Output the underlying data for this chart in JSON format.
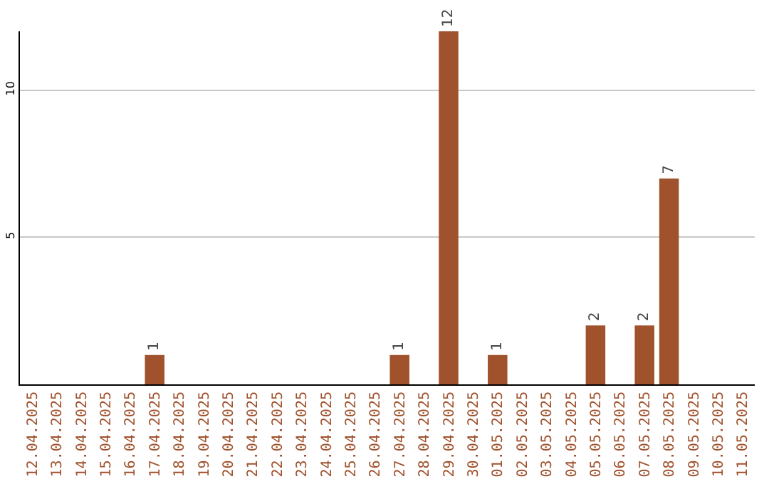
{
  "chart_data": {
    "type": "bar",
    "categories": [
      "12.04.2025",
      "13.04.2025",
      "14.04.2025",
      "15.04.2025",
      "16.04.2025",
      "17.04.2025",
      "18.04.2025",
      "19.04.2025",
      "20.04.2025",
      "21.04.2025",
      "22.04.2025",
      "23.04.2025",
      "24.04.2025",
      "25.04.2025",
      "26.04.2025",
      "27.04.2025",
      "28.04.2025",
      "29.04.2025",
      "30.04.2025",
      "01.05.2025",
      "02.05.2025",
      "03.05.2025",
      "04.05.2025",
      "05.05.2025",
      "06.05.2025",
      "07.05.2025",
      "08.05.2025",
      "09.05.2025",
      "10.05.2025",
      "11.05.2025"
    ],
    "values": [
      0,
      0,
      0,
      0,
      0,
      1,
      0,
      0,
      0,
      0,
      0,
      0,
      0,
      0,
      0,
      1,
      0,
      12,
      0,
      1,
      0,
      0,
      0,
      2,
      0,
      2,
      7,
      0,
      0,
      0
    ],
    "value_labels": [
      null,
      null,
      null,
      null,
      null,
      "1",
      null,
      null,
      null,
      null,
      null,
      null,
      null,
      null,
      null,
      "1",
      null,
      "12",
      null,
      "1",
      null,
      null,
      null,
      "2",
      null,
      "2",
      "7",
      null,
      null,
      null
    ],
    "color": "#a0522d",
    "ylim": [
      0,
      12
    ],
    "yticks": [
      5,
      10
    ],
    "grid": "y"
  }
}
